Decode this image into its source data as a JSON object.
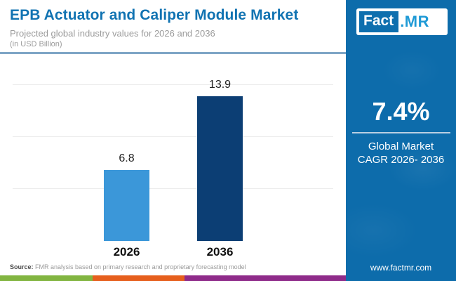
{
  "header": {
    "title": "EPB Actuator and Caliper Module Market",
    "subtitle": "Projected global industry values for 2026 and 2036",
    "unit_note": "(in USD Billion)"
  },
  "chart_data": {
    "type": "bar",
    "title": "EPB Actuator and Caliper Module Market",
    "categories": [
      "2026",
      "2036"
    ],
    "values": [
      6.8,
      13.9
    ],
    "value_labels": [
      "6.8",
      "13.9"
    ],
    "unit": "USD Billion",
    "xlabel": "",
    "ylabel": "",
    "ylim": [
      0,
      16.4
    ],
    "gridline_values": [
      5,
      10,
      15
    ],
    "bar_colors": [
      "#3b97d9",
      "#0c3e74"
    ],
    "grid": true,
    "legend": false
  },
  "panel": {
    "logo": {
      "fact": "Fact",
      "dot_mr": ".MR"
    },
    "cagr_value": "7.4%",
    "cagr_label_line1": "Global Market",
    "cagr_label_line2": "CAGR 2026- 2036",
    "website": "www.factmr.com",
    "panel_color": "#0d6cab"
  },
  "footer": {
    "source_label": "Source:",
    "source_text": " FMR analysis based on primary research and proprietary forecasting model",
    "stripe_colors": [
      "#82b541",
      "#e65f1d",
      "#8f2b8a"
    ]
  }
}
